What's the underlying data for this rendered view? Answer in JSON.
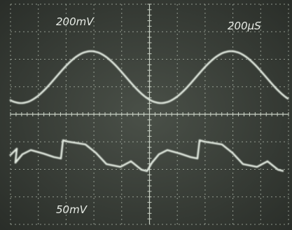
{
  "labels": {
    "ch1_scale": "200mV",
    "timebase": "200µS",
    "ch2_scale": "50mV"
  }
}
